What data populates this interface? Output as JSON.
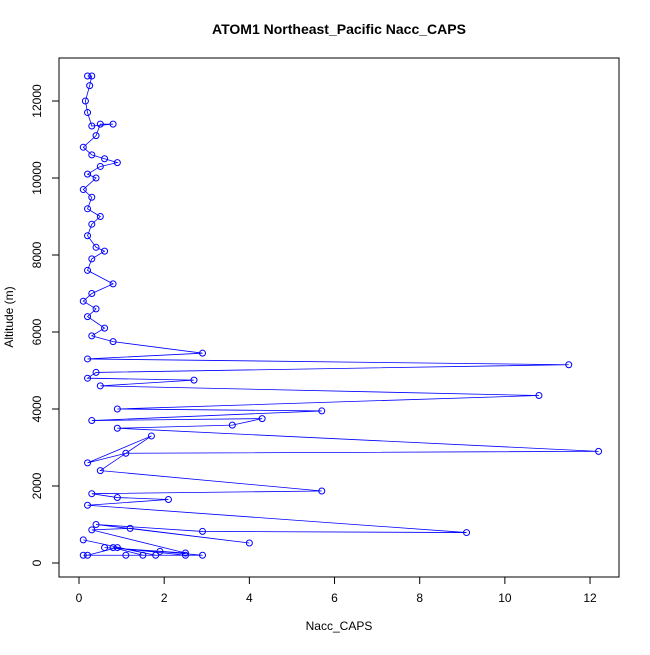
{
  "chart_data": {
    "type": "line",
    "title": "ATOM1 Northeast_Pacific Nacc_CAPS",
    "x_label": "Nacc_CAPS",
    "y_label": "Altitude (m)",
    "xlim": [
      -0.47,
      12.68
    ],
    "ylim": [
      -364,
      13117
    ],
    "xticks": [
      0,
      2,
      4,
      6,
      8,
      10,
      12
    ],
    "yticks": [
      0,
      2000,
      4000,
      6000,
      8000,
      10000,
      12000
    ],
    "series": [
      {
        "color": "#0000ff",
        "x": [
          0.2,
          0.3,
          0.25,
          0.15,
          0.2,
          0.3,
          0.8,
          0.5,
          0.4,
          0.1,
          0.3,
          0.6,
          0.9,
          0.5,
          0.2,
          0.4,
          0.1,
          0.3,
          0.2,
          0.5,
          0.3,
          0.2,
          0.4,
          0.6,
          0.3,
          0.2,
          0.8,
          0.3,
          0.1,
          0.4,
          0.2,
          0.6,
          0.3,
          0.8,
          2.9,
          0.2,
          11.5,
          0.4,
          0.2,
          2.7,
          0.5,
          10.8,
          0.9,
          5.7,
          0.3,
          4.3,
          3.6,
          0.9,
          12.2,
          1.1,
          0.2,
          1.7,
          0.5,
          5.7,
          0.3,
          0.9,
          2.1,
          0.2,
          9.1,
          2.9,
          0.4,
          4.0,
          1.2,
          0.3,
          2.5,
          0.6,
          1.9,
          2.9,
          0.1,
          1.5,
          0.8,
          2.5,
          1.1,
          0.2,
          0.9,
          1.8,
          0.1
        ],
        "values": [
          12650,
          12650,
          12400,
          12000,
          11700,
          11350,
          11400,
          11400,
          11100,
          10800,
          10600,
          10500,
          10400,
          10300,
          10100,
          10000,
          9700,
          9500,
          9200,
          9000,
          8800,
          8500,
          8200,
          8100,
          7900,
          7600,
          7250,
          7000,
          6800,
          6600,
          6400,
          6100,
          5900,
          5750,
          5450,
          5300,
          5150,
          4950,
          4800,
          4750,
          4600,
          4350,
          4000,
          3950,
          3700,
          3750,
          3580,
          3500,
          2900,
          2850,
          2600,
          3300,
          2400,
          1870,
          1800,
          1700,
          1650,
          1500,
          790,
          820,
          1000,
          520,
          900,
          860,
          260,
          400,
          300,
          200,
          200,
          200,
          400,
          200,
          200,
          200,
          400,
          200,
          600
        ]
      }
    ]
  }
}
